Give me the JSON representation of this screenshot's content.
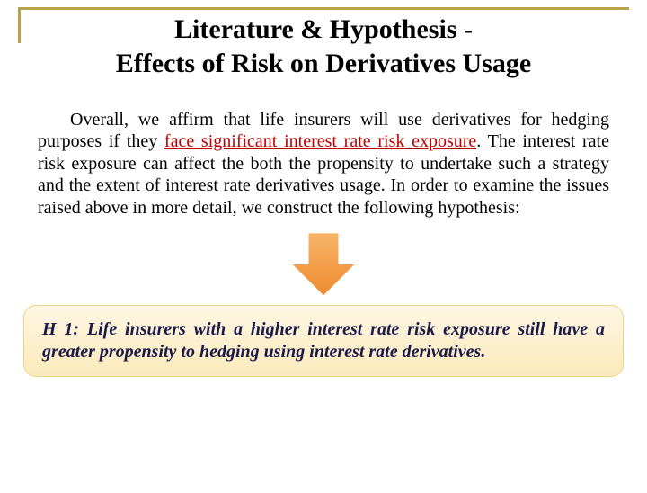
{
  "colors": {
    "title_border": "#b8a34a",
    "highlight_text": "#c00000",
    "arrow_fill_top": "#f8b56a",
    "arrow_fill_bottom": "#ed8a2d",
    "arrow_stroke": "#ffffff",
    "hypo_bg_top": "#fdf6e3",
    "hypo_bg_bottom": "#fceabb",
    "hypo_border": "#e8d48a",
    "hypo_text": "#1a1a4a"
  },
  "title": {
    "line1": "Literature & Hypothesis -",
    "line2": "Effects of Risk on Derivatives Usage"
  },
  "body": {
    "pre": "Overall, we affirm that life insurers will use derivatives for hedging purposes if they ",
    "highlight": "face significant interest rate risk exposure",
    "post": ". The interest rate risk exposure can affect the both the propensity to undertake such a strategy and the extent of interest rate derivatives usage. In order to examine the issues raised above in more detail, we construct the following hypothesis:"
  },
  "arrow": {
    "width": 90,
    "height": 78
  },
  "hypothesis": {
    "text": "H 1: Life insurers with a higher interest rate risk exposure still have a greater propensity to hedging using interest rate derivatives."
  }
}
